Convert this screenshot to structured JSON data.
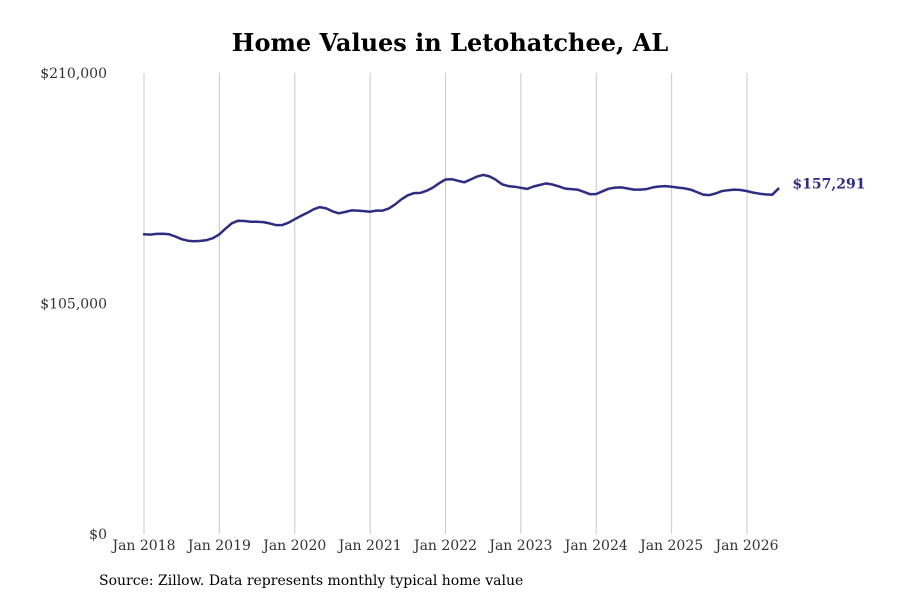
{
  "chart_data": {
    "type": "line",
    "title": "Home Values in Letohatchee, AL",
    "xlabel": "",
    "ylabel": "",
    "ylim": [
      0,
      210000
    ],
    "y_ticks": [
      {
        "value": 0,
        "label": "$0"
      },
      {
        "value": 105000,
        "label": "$105,000"
      },
      {
        "value": 210000,
        "label": "$210,000"
      }
    ],
    "x_ticks": [
      {
        "value": 2018,
        "label": "Jan 2018"
      },
      {
        "value": 2019,
        "label": "Jan 2019"
      },
      {
        "value": 2020,
        "label": "Jan 2020"
      },
      {
        "value": 2021,
        "label": "Jan 2021"
      },
      {
        "value": 2022,
        "label": "Jan 2022"
      },
      {
        "value": 2023,
        "label": "Jan 2023"
      },
      {
        "value": 2024,
        "label": "Jan 2024"
      },
      {
        "value": 2025,
        "label": "Jan 2025"
      },
      {
        "value": 2026,
        "label": "Jan 2026"
      }
    ],
    "xlim": [
      2018,
      2026.4
    ],
    "grid": "vertical",
    "line_color": "#2e2d82",
    "end_label": "$157,291",
    "series": [
      {
        "x": [
          2018.0,
          2018.083,
          2018.167,
          2018.25,
          2018.333,
          2018.417,
          2018.5,
          2018.583,
          2018.667,
          2018.75,
          2018.833,
          2018.917,
          2019.0,
          2019.083,
          2019.167,
          2019.25,
          2019.333,
          2019.417,
          2019.5,
          2019.583,
          2019.667,
          2019.75,
          2019.833,
          2019.917,
          2020.0,
          2020.083,
          2020.167,
          2020.25,
          2020.333,
          2020.417,
          2020.5,
          2020.583,
          2020.667,
          2020.75,
          2020.833,
          2020.917,
          2021.0,
          2021.083,
          2021.167,
          2021.25,
          2021.333,
          2021.417,
          2021.5,
          2021.583,
          2021.667,
          2021.75,
          2021.833,
          2021.917,
          2022.0,
          2022.083,
          2022.167,
          2022.25,
          2022.333,
          2022.417,
          2022.5,
          2022.583,
          2022.667,
          2022.75,
          2022.833,
          2022.917,
          2023.0,
          2023.083,
          2023.167,
          2023.25,
          2023.333,
          2023.417,
          2023.5,
          2023.583,
          2023.667,
          2023.75,
          2023.833,
          2023.917,
          2024.0,
          2024.083,
          2024.167,
          2024.25,
          2024.333,
          2024.417,
          2024.5,
          2024.583,
          2024.667,
          2024.75,
          2024.833,
          2024.917,
          2025.0,
          2025.083,
          2025.167,
          2025.25,
          2025.333,
          2025.417,
          2025.5,
          2025.583,
          2025.667,
          2025.75,
          2025.833,
          2025.917,
          2026.0,
          2026.083,
          2026.167,
          2026.25,
          2026.333,
          2026.417
        ],
        "values": [
          136500,
          136400,
          136700,
          136800,
          136500,
          135500,
          134300,
          133600,
          133400,
          133500,
          133900,
          134800,
          136500,
          139100,
          141600,
          142700,
          142600,
          142200,
          142200,
          142100,
          141500,
          140700,
          140700,
          141800,
          143400,
          144900,
          146300,
          147900,
          148900,
          148300,
          147000,
          146100,
          146700,
          147400,
          147300,
          147100,
          146800,
          147300,
          147300,
          148300,
          150200,
          152500,
          154300,
          155300,
          155400,
          156400,
          157800,
          159800,
          161500,
          161600,
          160900,
          160200,
          161500,
          162800,
          163600,
          162900,
          161400,
          159300,
          158500,
          158200,
          157700,
          157200,
          158300,
          159000,
          159700,
          159200,
          158400,
          157400,
          157100,
          156900,
          155900,
          154800,
          154900,
          156100,
          157300,
          157800,
          157900,
          157400,
          156900,
          156900,
          157100,
          157900,
          158300,
          158500,
          158200,
          157800,
          157500,
          156900,
          155800,
          154600,
          154400,
          155100,
          156200,
          156600,
          156900,
          156700,
          156200,
          155500,
          155000,
          154700,
          154500,
          157291
        ]
      }
    ]
  },
  "source_text": "Source: Zillow. Data represents monthly typical home value"
}
